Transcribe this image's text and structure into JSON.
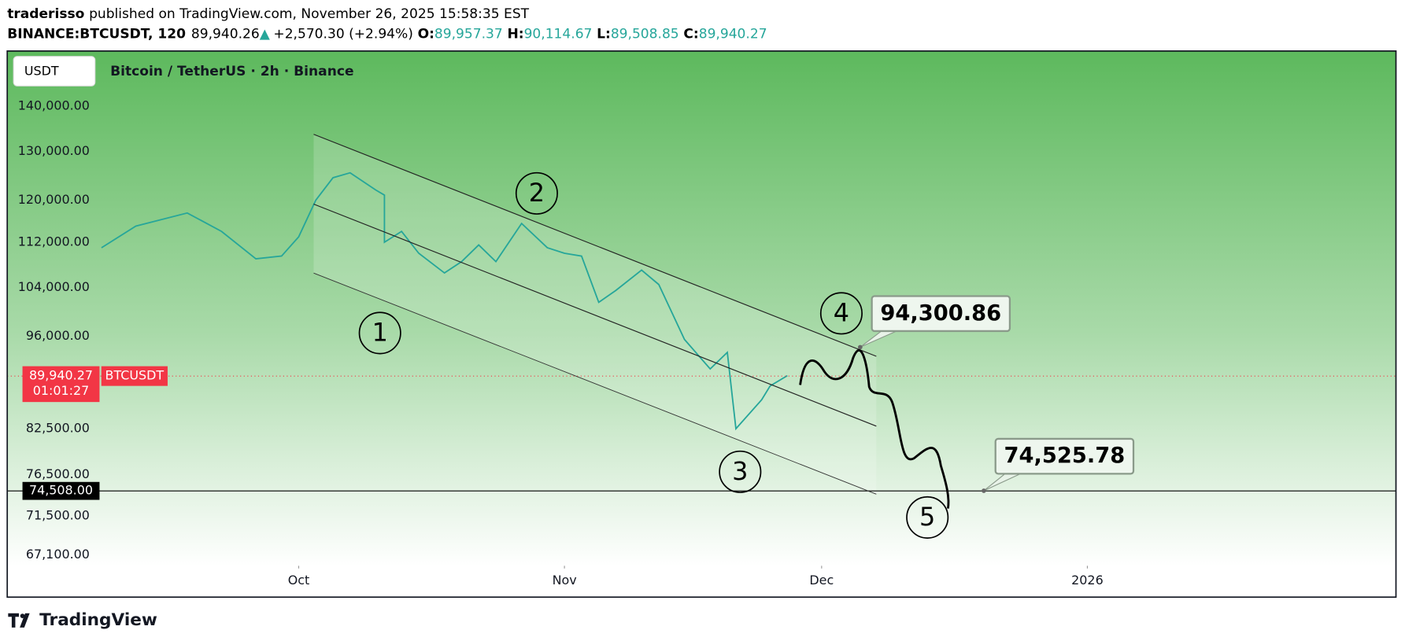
{
  "header": {
    "author": "traderisso",
    "published": "published on TradingView.com, November 26, 2025 15:58:35 EST",
    "symbol": "BINANCE:BTCUSDT, 120",
    "last": "89,940.26",
    "arrow": "▲",
    "change": "+2,570.30 (+2.94%)",
    "o_label": "O:",
    "open": "89,957.37",
    "h_label": "H:",
    "high": "90,114.67",
    "l_label": "L:",
    "low": "89,508.85",
    "c_label": "C:",
    "close": "89,940.27"
  },
  "toolbar": {
    "currency": "USDT",
    "title": "Bitcoin / TetherUS · 2h · Binance"
  },
  "chart_data": {
    "type": "line",
    "log_scale": true,
    "grid": false,
    "x": [
      -23,
      -19,
      -13,
      -9,
      -5,
      -2,
      0,
      2,
      4,
      6,
      9,
      10,
      10,
      12,
      14,
      17,
      19,
      21,
      23,
      26,
      29,
      31,
      33,
      35,
      37,
      40,
      42,
      45,
      48,
      50,
      51,
      54,
      55,
      57
    ],
    "series": [
      {
        "name": "BTCUSDT",
        "color": "#26a69a",
        "values": [
          111000,
          115000,
          117500,
          114000,
          109000,
          109500,
          113000,
          120000,
          124500,
          125500,
          122000,
          121000,
          112000,
          114000,
          110000,
          106500,
          108500,
          111500,
          108500,
          115500,
          111000,
          110000,
          109500,
          101500,
          103500,
          107000,
          104500,
          95500,
          91000,
          93500,
          82500,
          86500,
          88500,
          90000
        ]
      }
    ],
    "xlim": [
      -34,
      128
    ],
    "xticks": [
      {
        "value": 0,
        "label": "Oct"
      },
      {
        "value": 31,
        "label": "Nov"
      },
      {
        "value": 61,
        "label": "Dec"
      },
      {
        "value": 92,
        "label": "2026"
      }
    ],
    "ylim": [
      65900,
      153000
    ],
    "yticks": [
      {
        "value": 140000,
        "label": "140,000.00"
      },
      {
        "value": 130000,
        "label": "130,000.00"
      },
      {
        "value": 120000,
        "label": "120,000.00"
      },
      {
        "value": 112000,
        "label": "112,000.00"
      },
      {
        "value": 104000,
        "label": "104,000.00"
      },
      {
        "value": 96000,
        "label": "96,000.00"
      },
      {
        "value": 82500,
        "label": "82,500.00"
      },
      {
        "value": 76500,
        "label": "76,500.00"
      },
      {
        "value": 71500,
        "label": "71,500.00"
      },
      {
        "value": 67100,
        "label": "67,100.00"
      }
    ],
    "last_price": {
      "value": 89940.27,
      "label": "89,940.27"
    },
    "countdown": "01:01:27",
    "hline": {
      "value": 74508,
      "label": "74,508.00"
    },
    "targets": [
      {
        "value": 94300.86,
        "label": "94,300.86"
      },
      {
        "value": 74525.78,
        "label": "74,525.78"
      }
    ],
    "waves": [
      "1",
      "2",
      "3",
      "4",
      "5"
    ]
  },
  "footer": {
    "brand": "TradingView"
  }
}
